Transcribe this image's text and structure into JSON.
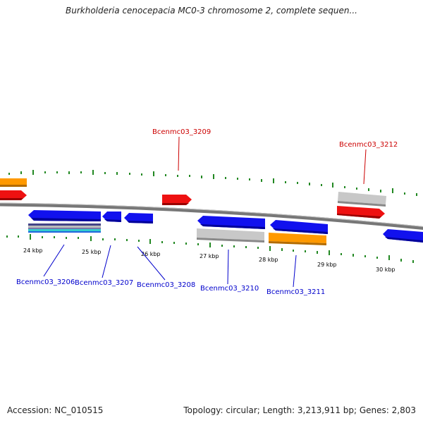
{
  "title": "Burkholderia cenocepacia MC0-3 chromosome 2, complete sequen...",
  "footer": {
    "accession": "Accession: NC_010515",
    "stats": "Topology: circular; Length: 3,213,911 bp; Genes: 2,803"
  },
  "scale_labels": [
    "24 kbp",
    "25 kbp",
    "26 kbp",
    "27 kbp",
    "28 kbp",
    "29 kbp",
    "30 kbp"
  ],
  "gene_labels": [
    {
      "text": "Bcenmc03_3209",
      "strand": "forward",
      "color": "#cc0000"
    },
    {
      "text": "Bcenmc03_3212",
      "strand": "forward",
      "color": "#cc0000"
    },
    {
      "text": "Bcenmc03_3206",
      "strand": "reverse",
      "color": "#0000cc"
    },
    {
      "text": "Bcenmc03_3207",
      "strand": "reverse",
      "color": "#0000cc"
    },
    {
      "text": "Bcenmc03_3208",
      "strand": "reverse",
      "color": "#0000cc"
    },
    {
      "text": "Bcenmc03_3210",
      "strand": "reverse",
      "color": "#0000cc"
    },
    {
      "text": "Bcenmc03_3211",
      "strand": "reverse",
      "color": "#0000cc"
    }
  ],
  "colors": {
    "forward_cds": "#ee1111",
    "reverse_cds": "#1111ee",
    "orange_feature": "#ff9900",
    "gray_feature": "#bbbbbb",
    "tick": "#228822",
    "backbone": "#777777"
  }
}
